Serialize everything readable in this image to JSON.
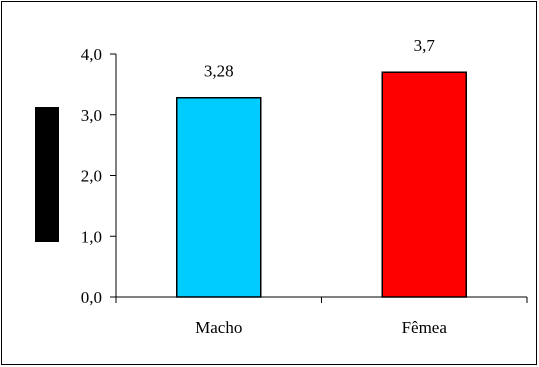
{
  "chart_data": {
    "type": "bar",
    "categories": [
      "Macho",
      "Fêmea"
    ],
    "values": [
      3.28,
      3.7
    ],
    "data_labels": [
      "3,28",
      "3,7"
    ],
    "bar_colors": [
      "#00CCFF",
      "#FF0000"
    ],
    "title": "",
    "xlabel": "",
    "ylabel": "",
    "ylim": [
      0,
      4
    ],
    "y_ticks": [
      0,
      1,
      2,
      3,
      4
    ],
    "y_tick_labels": [
      "0,0",
      "1,0",
      "2,0",
      "3,0",
      "4,0"
    ],
    "grid": false,
    "legend": "none",
    "ylabel_block_color": "#000000"
  }
}
